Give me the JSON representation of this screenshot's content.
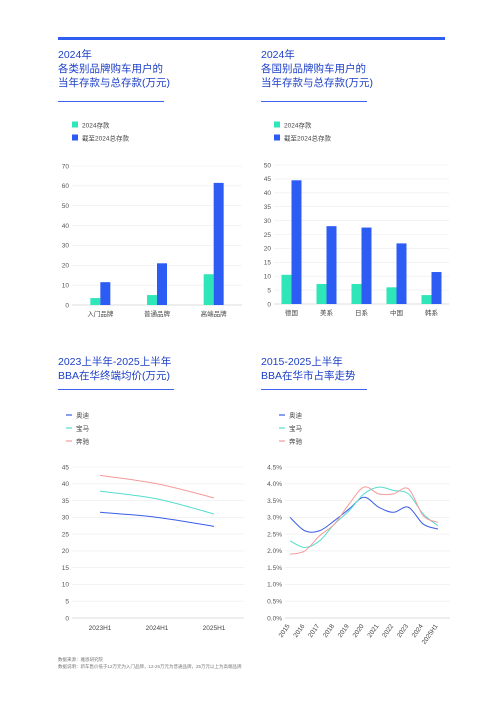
{
  "footnotes": [
    "数据来源：雅恩研究院",
    "数据说明：新车售价低于12万元为入门品牌，12-25万元为普通品牌，25万元以上为高端品牌"
  ],
  "colors": {
    "accent": "#2f5ef2",
    "green": "#2ee6b8",
    "blue": "#2d5cf5",
    "audi": "#3b5de7",
    "bmw": "#54ddd0",
    "benz": "#f59a9a"
  },
  "chart_data": [
    {
      "type": "bar",
      "title_lines": [
        "2024年",
        "各类别品牌购车用户的",
        "当年存款与总存款(万元)"
      ],
      "categories": [
        "入门品牌",
        "普通品牌",
        "高端品牌"
      ],
      "series": [
        {
          "name": "2024存款",
          "values": [
            3.5,
            5,
            15.5
          ]
        },
        {
          "name": "截至2024总存款",
          "values": [
            11.5,
            21,
            61.5
          ]
        }
      ],
      "yticks": [
        "0",
        "10",
        "20",
        "30",
        "40",
        "50",
        "60",
        "70"
      ],
      "ylim": [
        0,
        70
      ]
    },
    {
      "type": "bar",
      "title_lines": [
        "2024年",
        "各国别品牌购车用户的",
        "当年存款与总存款(万元)"
      ],
      "categories": [
        "德国",
        "美系",
        "日系",
        "中国",
        "韩系"
      ],
      "series": [
        {
          "name": "2024存款",
          "values": [
            10.5,
            7.2,
            7.2,
            6,
            3.2
          ]
        },
        {
          "name": "截至2024总存款",
          "values": [
            44.5,
            28,
            27.5,
            21.8,
            11.5
          ]
        }
      ],
      "yticks": [
        "0",
        "5",
        "10",
        "15",
        "20",
        "25",
        "30",
        "35",
        "40",
        "45",
        "50"
      ],
      "ylim": [
        0,
        50
      ]
    },
    {
      "type": "line",
      "title_lines": [
        "2023上半年-2025上半年",
        "BBA在华终端均价(万元)"
      ],
      "x": [
        "2023H1",
        "2024H1",
        "2025H1"
      ],
      "series": [
        {
          "name": "奥迪",
          "values": [
            31.5,
            30,
            27.3
          ]
        },
        {
          "name": "宝马",
          "values": [
            37.8,
            35.5,
            31
          ]
        },
        {
          "name": "奔驰",
          "values": [
            42.5,
            40,
            35.8
          ]
        }
      ],
      "yticks": [
        "0",
        "5",
        "10",
        "15",
        "20",
        "25",
        "30",
        "35",
        "40",
        "45"
      ],
      "ylim": [
        0,
        45
      ]
    },
    {
      "type": "line",
      "title_lines": [
        "2015-2025上半年",
        "BBA在华市占率走势"
      ],
      "x": [
        "2015",
        "2016",
        "2017",
        "2018",
        "2019",
        "2020",
        "2021",
        "2022",
        "2023",
        "2024",
        "2025H1"
      ],
      "series": [
        {
          "name": "奥迪",
          "values": [
            3.0,
            2.6,
            2.6,
            2.9,
            3.25,
            3.6,
            3.3,
            3.15,
            3.3,
            2.8,
            2.65
          ]
        },
        {
          "name": "宝马",
          "values": [
            2.3,
            2.1,
            2.3,
            2.8,
            3.2,
            3.7,
            3.9,
            3.8,
            3.7,
            3.1,
            2.75
          ]
        },
        {
          "name": "奔驰",
          "values": [
            1.9,
            2.0,
            2.45,
            2.8,
            3.4,
            3.9,
            3.7,
            3.7,
            3.85,
            3.05,
            2.85
          ]
        }
      ],
      "yticks": [
        "0.0%",
        "0.5%",
        "1.0%",
        "1.5%",
        "2.0%",
        "2.5%",
        "3.0%",
        "3.5%",
        "4.0%",
        "4.5%"
      ],
      "ylim": [
        0,
        4.5
      ]
    }
  ]
}
